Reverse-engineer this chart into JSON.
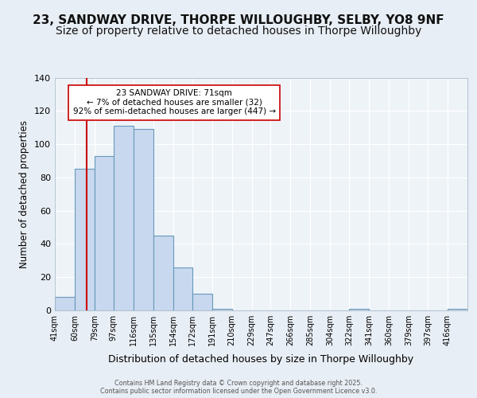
{
  "title_line1": "23, SANDWAY DRIVE, THORPE WILLOUGHBY, SELBY, YO8 9NF",
  "title_line2": "Size of property relative to detached houses in Thorpe Willoughby",
  "xlabel": "Distribution of detached houses by size in Thorpe Willoughby",
  "ylabel": "Number of detached properties",
  "bin_labels": [
    "41sqm",
    "60sqm",
    "79sqm",
    "97sqm",
    "116sqm",
    "135sqm",
    "154sqm",
    "172sqm",
    "191sqm",
    "210sqm",
    "229sqm",
    "247sqm",
    "266sqm",
    "285sqm",
    "304sqm",
    "322sqm",
    "341sqm",
    "360sqm",
    "379sqm",
    "397sqm",
    "416sqm"
  ],
  "bin_edges": [
    41,
    60,
    79,
    97,
    116,
    135,
    154,
    172,
    191,
    210,
    229,
    247,
    266,
    285,
    304,
    322,
    341,
    360,
    379,
    397,
    416
  ],
  "bar_heights": [
    8,
    85,
    93,
    111,
    109,
    45,
    26,
    10,
    1,
    0,
    0,
    0,
    0,
    0,
    0,
    1,
    0,
    0,
    0,
    0,
    1
  ],
  "bar_color": "#c8d8ee",
  "bar_edge_color": "#6699bb",
  "property_size": 71,
  "vline_color": "#cc0000",
  "annotation_text": "23 SANDWAY DRIVE: 71sqm\n← 7% of detached houses are smaller (32)\n92% of semi-detached houses are larger (447) →",
  "annotation_box_color": "#ffffff",
  "annotation_box_edge": "#cc0000",
  "ylim": [
    0,
    140
  ],
  "yticks": [
    0,
    20,
    40,
    60,
    80,
    100,
    120,
    140
  ],
  "bg_color": "#e8eef5",
  "plot_bg_color": "#eef3f8",
  "footer_line1": "Contains HM Land Registry data © Crown copyright and database right 2025.",
  "footer_line2": "Contains public sector information licensed under the Open Government Licence v3.0.",
  "title_fontsize": 11,
  "subtitle_fontsize": 10
}
